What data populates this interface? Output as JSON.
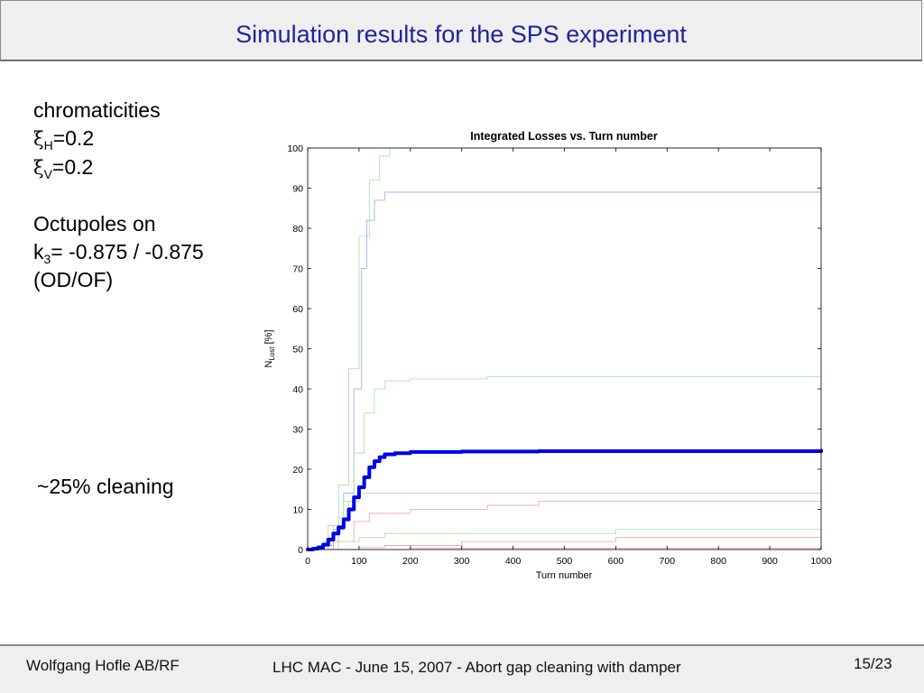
{
  "slide": {
    "title": "Simulation results for the SPS experiment",
    "footer_author": "Wolfgang Hofle AB/RF",
    "footer_center": "LHC MAC - June 15, 2007 - Abort gap cleaning with damper",
    "footer_page": "15/23"
  },
  "left_text": {
    "chromaticities": "chromaticities",
    "xi_symbol": "ξ",
    "xi_h_sub": "H",
    "xi_h_val": "=0.2",
    "xi_v_sub": "V",
    "xi_v_val": "=0.2",
    "octupoles": "Octupoles on",
    "k_label": "k",
    "k_sub": "3",
    "k_val": "= -0.875 / -0.875",
    "od_of": "(OD/OF)"
  },
  "annotation": {
    "cleaning": "~25% cleaning"
  },
  "chart_data": {
    "type": "line",
    "title": "Integrated Losses vs. Turn number",
    "xlabel": "Turn number",
    "ylabel_main": "N",
    "ylabel_sub": "Lost",
    "ylabel_unit": " [%]",
    "xlim": [
      0,
      1000
    ],
    "ylim": [
      0,
      100
    ],
    "xticks": [
      0,
      100,
      200,
      300,
      400,
      500,
      600,
      700,
      800,
      900,
      1000
    ],
    "yticks": [
      0,
      10,
      20,
      30,
      40,
      50,
      60,
      70,
      80,
      90,
      100
    ],
    "grid": false,
    "series": [
      {
        "color": "#9fe09f",
        "width": 0.8,
        "points": [
          [
            0,
            0
          ],
          [
            20,
            1
          ],
          [
            40,
            6
          ],
          [
            60,
            16
          ],
          [
            80,
            45
          ],
          [
            100,
            78
          ],
          [
            120,
            92
          ],
          [
            140,
            98
          ],
          [
            160,
            100
          ],
          [
            1000,
            100
          ]
        ]
      },
      {
        "color": "#9f9fe8",
        "width": 0.8,
        "points": [
          [
            0,
            0
          ],
          [
            30,
            1
          ],
          [
            50,
            5
          ],
          [
            70,
            14
          ],
          [
            90,
            40
          ],
          [
            105,
            70
          ],
          [
            115,
            82
          ],
          [
            130,
            87
          ],
          [
            150,
            89
          ],
          [
            1000,
            89
          ]
        ]
      },
      {
        "color": "#9fe09f",
        "width": 0.8,
        "points": [
          [
            0,
            0
          ],
          [
            30,
            2
          ],
          [
            50,
            6
          ],
          [
            70,
            12
          ],
          [
            90,
            24
          ],
          [
            110,
            34
          ],
          [
            130,
            40
          ],
          [
            150,
            42
          ],
          [
            200,
            42.5
          ],
          [
            350,
            43
          ],
          [
            1000,
            43.5
          ]
        ]
      },
      {
        "color": "#9fe09f",
        "width": 0.8,
        "points": [
          [
            0,
            0
          ],
          [
            40,
            2
          ],
          [
            60,
            8
          ],
          [
            80,
            12
          ],
          [
            100,
            14
          ],
          [
            1000,
            14
          ]
        ]
      },
      {
        "color": "#e8a0a0",
        "width": 0.8,
        "points": [
          [
            0,
            0
          ],
          [
            50,
            2
          ],
          [
            90,
            7
          ],
          [
            120,
            9
          ],
          [
            200,
            10
          ],
          [
            350,
            11
          ],
          [
            450,
            12
          ],
          [
            1000,
            12
          ]
        ]
      },
      {
        "color": "#9fe09f",
        "width": 0.8,
        "points": [
          [
            0,
            0
          ],
          [
            60,
            2
          ],
          [
            100,
            3
          ],
          [
            150,
            4
          ],
          [
            500,
            4
          ],
          [
            600,
            5
          ],
          [
            1000,
            5
          ]
        ]
      },
      {
        "color": "#e8a0a0",
        "width": 0.8,
        "points": [
          [
            0,
            0
          ],
          [
            100,
            0.5
          ],
          [
            150,
            1
          ],
          [
            300,
            2
          ],
          [
            600,
            3
          ],
          [
            1000,
            3
          ]
        ]
      },
      {
        "color": "#e8a0a0",
        "width": 0.8,
        "points": [
          [
            0,
            0
          ],
          [
            200,
            0.3
          ],
          [
            1000,
            0.5
          ]
        ]
      },
      {
        "color": "#0000e6",
        "width": 4,
        "points": [
          [
            0,
            0
          ],
          [
            10,
            0.2
          ],
          [
            20,
            0.5
          ],
          [
            30,
            1.2
          ],
          [
            40,
            2.5
          ],
          [
            50,
            4
          ],
          [
            60,
            5.5
          ],
          [
            70,
            7.5
          ],
          [
            80,
            10
          ],
          [
            90,
            13
          ],
          [
            100,
            15.5
          ],
          [
            110,
            18
          ],
          [
            120,
            20.5
          ],
          [
            130,
            22
          ],
          [
            140,
            23
          ],
          [
            150,
            23.7
          ],
          [
            170,
            24
          ],
          [
            200,
            24.3
          ],
          [
            300,
            24.4
          ],
          [
            450,
            24.5
          ],
          [
            1000,
            24.6
          ]
        ]
      }
    ]
  }
}
